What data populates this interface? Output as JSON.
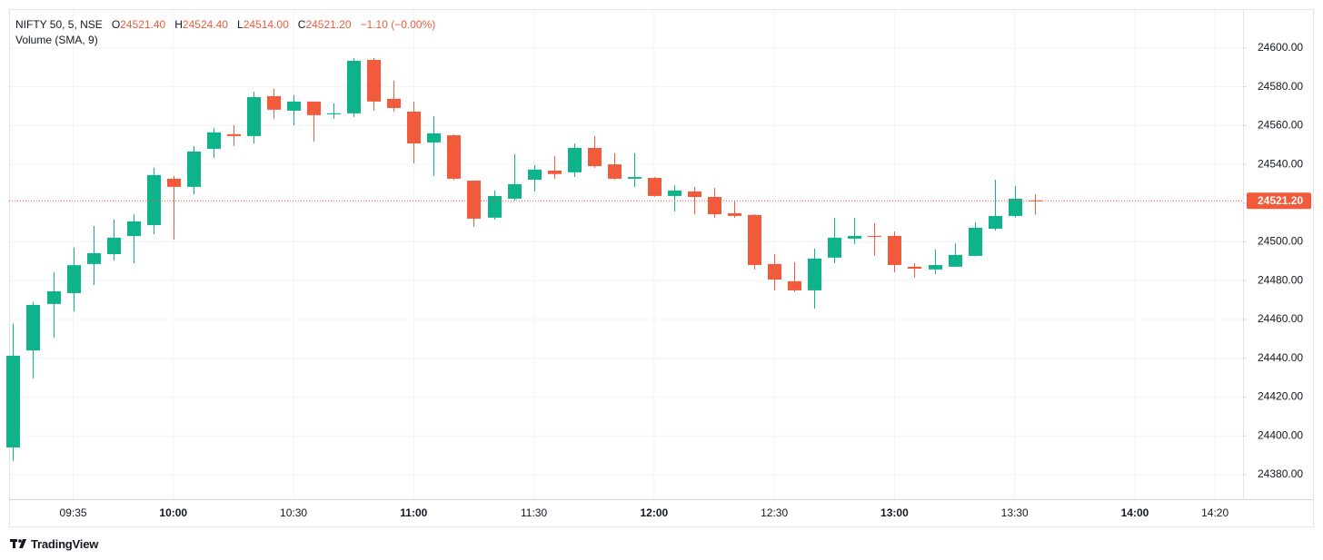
{
  "chart_data": {
    "type": "candlestick",
    "symbol": "NIFTY 50, 5, NSE",
    "ohlc_letters": [
      "O",
      "H",
      "L",
      "C"
    ],
    "ohlc_values": [
      {
        "value": 24521.4,
        "label": "24521.40"
      },
      {
        "value": 24524.4,
        "label": "24524.40"
      },
      {
        "value": 24514.0,
        "label": "24514.00"
      },
      {
        "value": 24521.2,
        "label": "24521.20"
      }
    ],
    "change": "−1.10 (−0.00%)",
    "indicator": "Volume (SMA, 9)",
    "last_price": {
      "value": 24521.2,
      "label": "24521.20"
    },
    "branding": "TradingView",
    "up_color": "#0eb38c",
    "down_color": "#f15b3c",
    "grid": true,
    "x": [
      "09:20",
      "09:25",
      "09:30",
      "09:35",
      "09:40",
      "09:45",
      "09:50",
      "09:55",
      "10:00",
      "10:05",
      "10:10",
      "10:15",
      "10:20",
      "10:25",
      "10:30",
      "10:35",
      "10:40",
      "10:45",
      "10:50",
      "10:55",
      "11:00",
      "11:05",
      "11:10",
      "11:15",
      "11:20",
      "11:25",
      "11:30",
      "11:35",
      "11:40",
      "11:45",
      "11:50",
      "11:55",
      "12:00",
      "12:05",
      "12:10",
      "12:15",
      "12:20",
      "12:25",
      "12:30",
      "12:35",
      "12:40",
      "12:45",
      "12:50",
      "12:55",
      "13:00",
      "13:05",
      "13:10",
      "13:15",
      "13:20",
      "13:25",
      "13:30",
      "13:35"
    ],
    "open": [
      24394,
      24444,
      24468,
      24473.6,
      24488.6,
      24493.7,
      24503,
      24508.7,
      24532.6,
      24528.4,
      24548,
      24555.6,
      24554.6,
      24575.2,
      24567.7,
      24572.4,
      24565.8,
      24566.3,
      24593.9,
      24573.8,
      24567.2,
      24551.3,
      24555,
      24531.6,
      24512.5,
      24522.3,
      24532.1,
      24536.8,
      24535.9,
      24548.5,
      24540,
      24532.6,
      24533,
      24523.7,
      24526,
      24523.2,
      24514.8,
      24513.9,
      24488.6,
      24479.7,
      24475,
      24491.9,
      24501.7,
      24503.1,
      24503.1,
      24487.2,
      24485.8,
      24487.2,
      24492.8,
      24506.8,
      24513.4,
      24521.4
    ],
    "high": [
      24457.7,
      24469,
      24484.4,
      24497,
      24508.2,
      24511.5,
      24514.3,
      24538.2,
      24534,
      24549.4,
      24558.8,
      24560.2,
      24577.5,
      24578.9,
      24575.7,
      24572.4,
      24571.4,
      24594.9,
      24594.9,
      24583.1,
      24572.4,
      24564.9,
      24555.5,
      24531.6,
      24526.5,
      24545.2,
      24539.6,
      24544.3,
      24550.8,
      24554.6,
      24545.7,
      24545.7,
      24533.5,
      24529.3,
      24528.4,
      24527.9,
      24520.9,
      24514.3,
      24493.7,
      24489.5,
      24496.5,
      24512.5,
      24512.5,
      24509.6,
      24505.4,
      24489,
      24496.1,
      24499.3,
      24510.1,
      24532.1,
      24528.8,
      24524.4
    ],
    "low": [
      24387,
      24429.6,
      24450.7,
      24464.2,
      24477.8,
      24490.5,
      24489,
      24504,
      24501.2,
      24524.6,
      24543.4,
      24549.4,
      24550.8,
      24563.5,
      24560.2,
      24551.8,
      24563.5,
      24564.4,
      24567.7,
      24567.2,
      24540.5,
      24534,
      24532,
      24507.8,
      24511.5,
      24521.3,
      24526,
      24532.6,
      24533.5,
      24538.2,
      24532.1,
      24528.4,
      24523.3,
      24515.7,
      24514.3,
      24512.5,
      24512.5,
      24485.8,
      24475,
      24474.1,
      24465.6,
      24489,
      24498.9,
      24492.8,
      24484.4,
      24481.6,
      24483.4,
      24487,
      24492.5,
      24505.9,
      24512.5,
      24514
    ],
    "close": [
      24441.3,
      24467.5,
      24474.5,
      24488,
      24494.2,
      24502.2,
      24510.6,
      24534.5,
      24528.4,
      24546.6,
      24556.5,
      24554.6,
      24574.7,
      24568.2,
      24572.4,
      24565.4,
      24566.3,
      24593.4,
      24572.4,
      24569.1,
      24550.8,
      24556,
      24532.6,
      24512,
      24523.7,
      24529.8,
      24537.3,
      24535,
      24548.5,
      24539.1,
      24532.6,
      24533.5,
      24523.7,
      24526.5,
      24523.2,
      24514.3,
      24513.4,
      24488.1,
      24480.6,
      24475,
      24491.4,
      24502.2,
      24503.1,
      24502.6,
      24488.1,
      24486.2,
      24488.1,
      24493.3,
      24507.3,
      24513.4,
      24522.3,
      24521.2
    ],
    "xlim": [
      "09:19",
      "14:27"
    ],
    "xticks": [
      "09:35",
      "10:00",
      "10:30",
      "11:00",
      "11:30",
      "12:00",
      "12:30",
      "13:00",
      "13:30",
      "14:00",
      "14:20"
    ],
    "ylim": [
      24367.3,
      24620.1
    ],
    "yticks": [
      {
        "value": 24380,
        "label": "24380.00"
      },
      {
        "value": 24400,
        "label": "24400.00"
      },
      {
        "value": 24420,
        "label": "24420.00"
      },
      {
        "value": 24440,
        "label": "24440.00"
      },
      {
        "value": 24460,
        "label": "24460.00"
      },
      {
        "value": 24480,
        "label": "24480.00"
      },
      {
        "value": 24500,
        "label": "24500.00"
      },
      {
        "value": 24520,
        "label": "24520.00"
      },
      {
        "value": 24540,
        "label": "24540.00"
      },
      {
        "value": 24560,
        "label": "24560.00"
      },
      {
        "value": 24580,
        "label": "24580.00"
      },
      {
        "value": 24600,
        "label": "24600.00"
      }
    ]
  }
}
